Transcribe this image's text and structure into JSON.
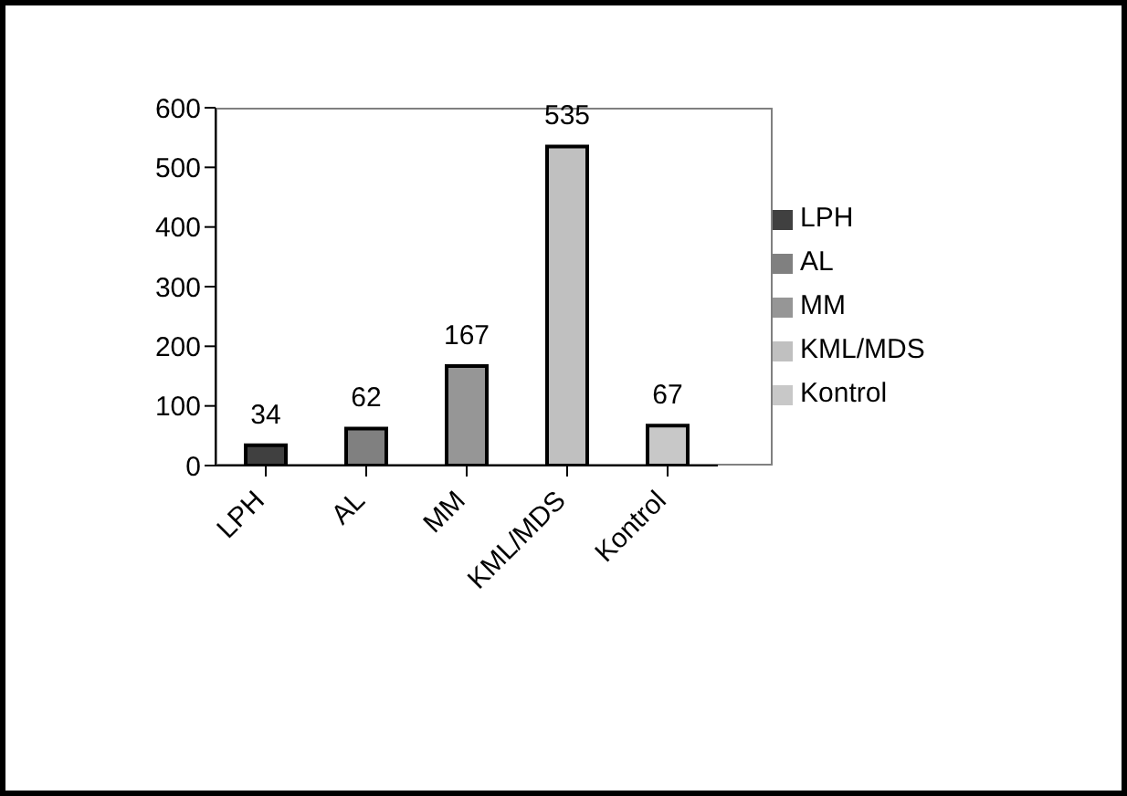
{
  "chart_data": {
    "type": "bar",
    "categories": [
      "LPH",
      "AL",
      "MM",
      "KML/MDS",
      "Kontrol"
    ],
    "stacked": true,
    "series": [
      {
        "name": "LPH",
        "color": "#404040",
        "values": [
          34,
          null,
          null,
          null,
          null
        ]
      },
      {
        "name": "AL",
        "color": "#808080",
        "values": [
          null,
          62,
          null,
          null,
          null
        ]
      },
      {
        "name": "MM",
        "color": "#969696",
        "values": [
          null,
          null,
          167,
          null,
          null
        ]
      },
      {
        "name": "KML/MDS",
        "color": "#c0c0c0",
        "values": [
          null,
          null,
          null,
          535,
          null
        ]
      },
      {
        "name": "Kontrol",
        "color": "#c8c8c8",
        "values": [
          null,
          null,
          null,
          null,
          67
        ]
      }
    ],
    "ylim": [
      0,
      600
    ],
    "yticks": [
      0,
      100,
      200,
      300,
      400,
      500,
      600
    ],
    "grid": false,
    "legend": "right",
    "data_labels": true
  }
}
